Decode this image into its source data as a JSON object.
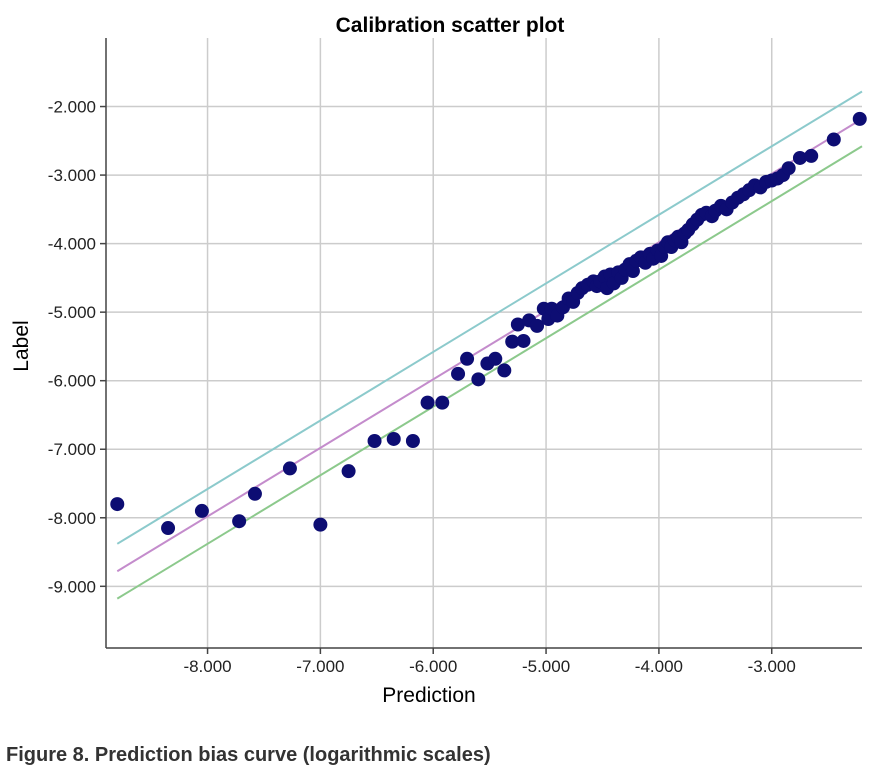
{
  "caption": "Figure 8. Prediction bias curve (logarithmic scales)",
  "chart_data": {
    "type": "scatter",
    "title": "Calibration scatter plot",
    "xlabel": "Prediction",
    "ylabel": "Label",
    "xlim": [
      -8.9,
      -2.2
    ],
    "ylim": [
      -9.9,
      -1.0
    ],
    "x_ticks": [
      -8,
      -7,
      -6,
      -5,
      -4,
      -3
    ],
    "x_tick_labels": [
      "-8.000",
      "-7.000",
      "-6.000",
      "-5.000",
      "-4.000",
      "-3.000"
    ],
    "y_ticks": [
      -9,
      -8,
      -7,
      -6,
      -5,
      -4,
      -3,
      -2
    ],
    "y_tick_labels": [
      "-9.000",
      "-8.000",
      "-7.000",
      "-6.000",
      "-5.000",
      "-4.000",
      "-3.000",
      "-2.000"
    ],
    "grid": true,
    "colors": {
      "points": "#0d0d73",
      "upper_line": "#8ccacc",
      "center_line": "#c48ccc",
      "lower_line": "#8cc98c",
      "grid": "#cccccc",
      "axis": "#444444"
    },
    "lines": [
      {
        "role": "upper",
        "x": [
          -8.8,
          -2.2
        ],
        "y": [
          -8.38,
          -1.78
        ]
      },
      {
        "role": "center",
        "x": [
          -8.8,
          -2.2
        ],
        "y": [
          -8.78,
          -2.18
        ]
      },
      {
        "role": "lower",
        "x": [
          -8.8,
          -2.2
        ],
        "y": [
          -9.18,
          -2.58
        ]
      }
    ],
    "series": [
      {
        "points": [
          [
            -8.8,
            -7.8
          ],
          [
            -8.35,
            -8.15
          ],
          [
            -8.05,
            -7.9
          ],
          [
            -7.72,
            -8.05
          ],
          [
            -7.58,
            -7.65
          ],
          [
            -7.27,
            -7.28
          ],
          [
            -7.0,
            -8.1
          ],
          [
            -6.75,
            -7.32
          ],
          [
            -6.52,
            -6.88
          ],
          [
            -6.35,
            -6.85
          ],
          [
            -6.18,
            -6.88
          ],
          [
            -6.05,
            -6.32
          ],
          [
            -5.92,
            -6.32
          ],
          [
            -5.78,
            -5.9
          ],
          [
            -5.7,
            -5.68
          ],
          [
            -5.6,
            -5.98
          ],
          [
            -5.52,
            -5.75
          ],
          [
            -5.45,
            -5.68
          ],
          [
            -5.37,
            -5.85
          ],
          [
            -5.3,
            -5.43
          ],
          [
            -5.25,
            -5.18
          ],
          [
            -5.2,
            -5.42
          ],
          [
            -5.15,
            -5.12
          ],
          [
            -5.08,
            -5.2
          ],
          [
            -5.02,
            -4.95
          ],
          [
            -4.98,
            -5.1
          ],
          [
            -4.95,
            -4.95
          ],
          [
            -4.9,
            -5.05
          ],
          [
            -4.85,
            -4.93
          ],
          [
            -4.8,
            -4.8
          ],
          [
            -4.76,
            -4.85
          ],
          [
            -4.72,
            -4.72
          ],
          [
            -4.68,
            -4.65
          ],
          [
            -4.63,
            -4.6
          ],
          [
            -4.58,
            -4.55
          ],
          [
            -4.55,
            -4.62
          ],
          [
            -4.52,
            -4.55
          ],
          [
            -4.48,
            -4.48
          ],
          [
            -4.46,
            -4.65
          ],
          [
            -4.43,
            -4.45
          ],
          [
            -4.4,
            -4.58
          ],
          [
            -4.36,
            -4.42
          ],
          [
            -4.33,
            -4.5
          ],
          [
            -4.3,
            -4.38
          ],
          [
            -4.26,
            -4.3
          ],
          [
            -4.23,
            -4.4
          ],
          [
            -4.2,
            -4.25
          ],
          [
            -4.16,
            -4.2
          ],
          [
            -4.12,
            -4.28
          ],
          [
            -4.08,
            -4.15
          ],
          [
            -4.05,
            -4.22
          ],
          [
            -4.01,
            -4.1
          ],
          [
            -3.98,
            -4.18
          ],
          [
            -3.95,
            -4.05
          ],
          [
            -3.92,
            -3.98
          ],
          [
            -3.89,
            -4.05
          ],
          [
            -3.86,
            -3.95
          ],
          [
            -3.83,
            -3.9
          ],
          [
            -3.8,
            -3.98
          ],
          [
            -3.77,
            -3.85
          ],
          [
            -3.74,
            -3.8
          ],
          [
            -3.7,
            -3.72
          ],
          [
            -3.66,
            -3.65
          ],
          [
            -3.62,
            -3.58
          ],
          [
            -3.58,
            -3.55
          ],
          [
            -3.53,
            -3.6
          ],
          [
            -3.5,
            -3.52
          ],
          [
            -3.45,
            -3.45
          ],
          [
            -3.4,
            -3.5
          ],
          [
            -3.35,
            -3.4
          ],
          [
            -3.3,
            -3.33
          ],
          [
            -3.25,
            -3.28
          ],
          [
            -3.2,
            -3.22
          ],
          [
            -3.15,
            -3.15
          ],
          [
            -3.1,
            -3.18
          ],
          [
            -3.05,
            -3.1
          ],
          [
            -3.0,
            -3.08
          ],
          [
            -2.95,
            -3.05
          ],
          [
            -2.9,
            -3.0
          ],
          [
            -2.85,
            -2.9
          ],
          [
            -2.75,
            -2.75
          ],
          [
            -2.65,
            -2.72
          ],
          [
            -2.45,
            -2.48
          ],
          [
            -2.22,
            -2.18
          ]
        ]
      }
    ]
  }
}
